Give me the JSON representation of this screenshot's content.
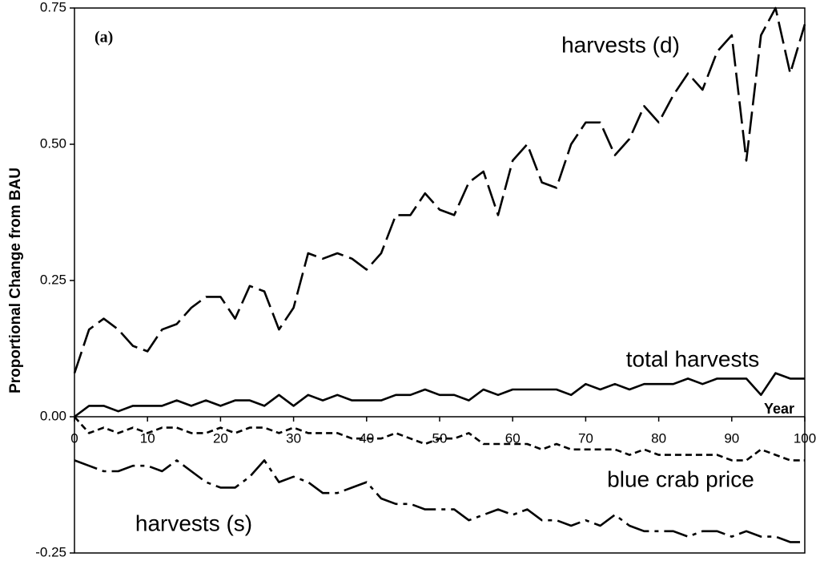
{
  "chart_data": {
    "type": "line",
    "annotations": [
      "(a)"
    ],
    "ylabel": "Proportional Change from BAU",
    "xlabel": "Year",
    "x": [
      0,
      2,
      4,
      6,
      8,
      10,
      12,
      14,
      16,
      18,
      20,
      22,
      24,
      26,
      28,
      30,
      32,
      34,
      36,
      38,
      40,
      42,
      44,
      46,
      48,
      50,
      52,
      54,
      56,
      58,
      60,
      62,
      64,
      66,
      68,
      70,
      72,
      74,
      76,
      78,
      80,
      82,
      84,
      86,
      88,
      90,
      92,
      94,
      96,
      98,
      100
    ],
    "xlim": [
      0,
      100
    ],
    "xticks": [
      0,
      10,
      20,
      30,
      40,
      50,
      60,
      70,
      80,
      90,
      100
    ],
    "ylim": [
      -0.25,
      0.75
    ],
    "yticks": [
      -0.25,
      {
        "value": 0,
        "label": "0.00"
      },
      0.25,
      {
        "value": 0.5,
        "label": "0.50"
      },
      0.75
    ],
    "series": [
      {
        "name": "harvests (d)",
        "color": "#000000",
        "values": [
          0.08,
          0.16,
          0.18,
          0.16,
          0.13,
          0.12,
          0.16,
          0.17,
          0.2,
          0.22,
          0.22,
          0.18,
          0.24,
          0.23,
          0.16,
          0.2,
          0.3,
          0.29,
          0.3,
          0.29,
          0.27,
          0.3,
          0.37,
          0.37,
          0.41,
          0.38,
          0.37,
          0.43,
          0.45,
          0.37,
          0.47,
          0.5,
          0.43,
          0.42,
          0.5,
          0.54,
          0.54,
          0.48,
          0.51,
          0.57,
          0.54,
          0.59,
          0.63,
          0.6,
          0.67,
          0.7,
          0.47,
          0.7,
          0.75,
          0.63,
          0.72
        ]
      },
      {
        "name": "total harvests",
        "color": "#000000",
        "values": [
          0,
          0.02,
          0.02,
          0.01,
          0.02,
          0.02,
          0.02,
          0.03,
          0.02,
          0.03,
          0.02,
          0.03,
          0.03,
          0.02,
          0.04,
          0.02,
          0.04,
          0.03,
          0.04,
          0.03,
          0.03,
          0.03,
          0.04,
          0.04,
          0.05,
          0.04,
          0.04,
          0.03,
          0.05,
          0.04,
          0.05,
          0.05,
          0.05,
          0.05,
          0.04,
          0.06,
          0.05,
          0.06,
          0.05,
          0.06,
          0.06,
          0.06,
          0.07,
          0.06,
          0.07,
          0.07,
          0.07,
          0.04,
          0.08,
          0.07,
          0.07
        ]
      },
      {
        "name": "blue crab price",
        "color": "#000000",
        "values": [
          0,
          -0.03,
          -0.02,
          -0.03,
          -0.02,
          -0.03,
          -0.02,
          -0.02,
          -0.03,
          -0.03,
          -0.02,
          -0.03,
          -0.02,
          -0.02,
          -0.03,
          -0.02,
          -0.03,
          -0.03,
          -0.03,
          -0.04,
          -0.04,
          -0.04,
          -0.03,
          -0.04,
          -0.05,
          -0.04,
          -0.04,
          -0.03,
          -0.05,
          -0.05,
          -0.05,
          -0.05,
          -0.06,
          -0.05,
          -0.06,
          -0.06,
          -0.06,
          -0.06,
          -0.07,
          -0.06,
          -0.07,
          -0.07,
          -0.07,
          -0.07,
          -0.07,
          -0.08,
          -0.08,
          -0.06,
          -0.07,
          -0.08,
          -0.08
        ]
      },
      {
        "name": "harvests (s)",
        "color": "#000000",
        "values": [
          -0.08,
          -0.09,
          -0.1,
          -0.1,
          -0.09,
          -0.09,
          -0.1,
          -0.08,
          -0.1,
          -0.12,
          -0.13,
          -0.13,
          -0.11,
          -0.08,
          -0.12,
          -0.11,
          -0.12,
          -0.14,
          -0.14,
          -0.13,
          -0.12,
          -0.15,
          -0.16,
          -0.16,
          -0.17,
          -0.17,
          -0.17,
          -0.19,
          -0.18,
          -0.17,
          -0.18,
          -0.17,
          -0.19,
          -0.19,
          -0.2,
          -0.19,
          -0.2,
          -0.18,
          -0.2,
          -0.21,
          -0.21,
          -0.21,
          -0.22,
          -0.21,
          -0.21,
          -0.22,
          -0.21,
          -0.22,
          -0.22,
          -0.23,
          -0.23
        ]
      }
    ]
  }
}
